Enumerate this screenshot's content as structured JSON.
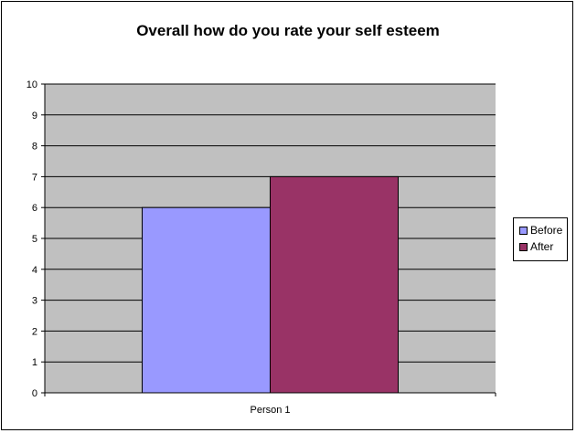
{
  "chart_data": {
    "type": "bar",
    "title": "Overall how do you rate your self esteem",
    "categories": [
      "Person 1"
    ],
    "series": [
      {
        "name": "Before",
        "values": [
          6
        ],
        "color": "#9999ff"
      },
      {
        "name": "After",
        "values": [
          7
        ],
        "color": "#993366"
      }
    ],
    "ylim": [
      0,
      10
    ],
    "yticks": [
      0,
      1,
      2,
      3,
      4,
      5,
      6,
      7,
      8,
      9,
      10
    ],
    "grid": true,
    "plot_background": "#c0c0c0",
    "legend_position": "right"
  }
}
